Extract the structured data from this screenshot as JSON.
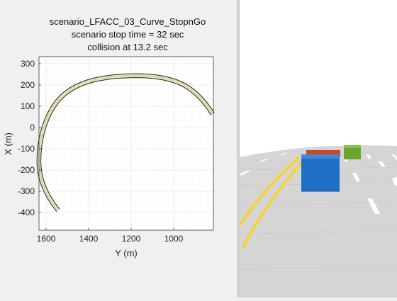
{
  "figure": {
    "title_lines": [
      "scenario_LFACC_03_Curve_StopnGo",
      "scenario stop time = 32 sec",
      "collision at 13.2 sec"
    ],
    "xlabel": "Y (m)",
    "ylabel": "X (m)",
    "xticks": [
      "1600",
      "1400",
      "1200",
      "1000"
    ],
    "yticks": [
      "300",
      "200",
      "100",
      "0",
      "-100",
      "-200",
      "-300",
      "-400"
    ]
  },
  "colors": {
    "road": "#e8e2b8",
    "road_edge": "#222222",
    "ego_vehicle": "#1f6fc4",
    "lead_vehicle": "#6aa62a",
    "target_vehicle": "#c8482a",
    "lane_yellow": "#f4d23a"
  }
}
